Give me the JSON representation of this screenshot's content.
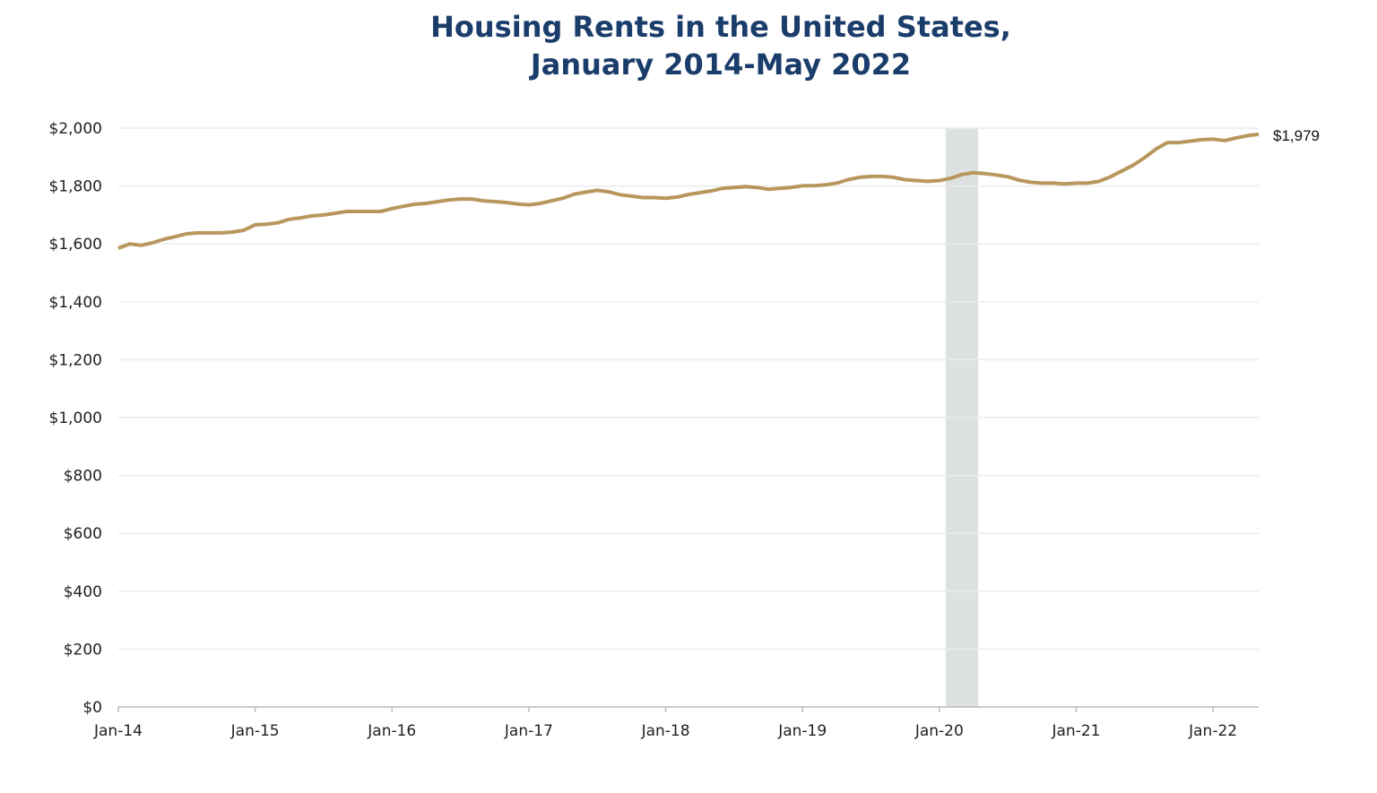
{
  "chart_data": {
    "type": "line",
    "title": "Housing Rents in the United States,",
    "subtitle": "January 2014-May 2022",
    "xlabel": "",
    "ylabel": "",
    "ylim": [
      0,
      2000
    ],
    "yticks": [
      "$0",
      "$200",
      "$400",
      "$600",
      "$800",
      "$1,000",
      "$1,200",
      "$1,400",
      "$1,600",
      "$1,800",
      "$2,000"
    ],
    "xticks": [
      "Jan-14",
      "Jan-15",
      "Jan-16",
      "Jan-17",
      "Jan-18",
      "Jan-19",
      "Jan-20",
      "Jan-21",
      "Jan-22"
    ],
    "grid": true,
    "x_start": "2014-01",
    "x_end": "2022-05",
    "frequency": "monthly",
    "shaded_period": {
      "start": "2020-02",
      "end": "2020-04",
      "color": "#dde1e0"
    },
    "end_label": "$1,979",
    "line_color": "#b8975e",
    "values": [
      1585,
      1600,
      1595,
      1604,
      1616,
      1625,
      1635,
      1638,
      1638,
      1638,
      1641,
      1647,
      1666,
      1668,
      1673,
      1685,
      1690,
      1697,
      1700,
      1706,
      1712,
      1712,
      1712,
      1712,
      1722,
      1730,
      1737,
      1740,
      1746,
      1752,
      1755,
      1755,
      1749,
      1746,
      1743,
      1738,
      1735,
      1740,
      1749,
      1758,
      1772,
      1779,
      1785,
      1780,
      1770,
      1765,
      1760,
      1760,
      1758,
      1762,
      1771,
      1777,
      1783,
      1792,
      1795,
      1798,
      1795,
      1789,
      1792,
      1795,
      1801,
      1801,
      1804,
      1810,
      1822,
      1830,
      1833,
      1833,
      1830,
      1822,
      1819,
      1816,
      1819,
      1827,
      1840,
      1846,
      1843,
      1838,
      1832,
      1820,
      1813,
      1810,
      1810,
      1807,
      1810,
      1810,
      1816,
      1832,
      1852,
      1872,
      1898,
      1928,
      1950,
      1950,
      1955,
      1960,
      1962,
      1957,
      1966,
      1974,
      1979
    ]
  }
}
